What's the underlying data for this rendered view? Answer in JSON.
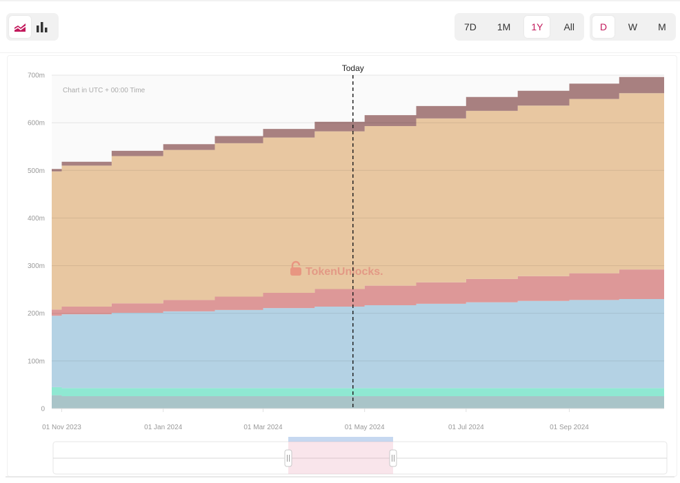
{
  "toolbar": {
    "chart_type_buttons": [
      {
        "icon": "area-chart-icon",
        "active": true
      },
      {
        "icon": "bar-chart-icon",
        "active": false
      }
    ],
    "range_buttons": [
      {
        "label": "7D",
        "active": false
      },
      {
        "label": "1M",
        "active": false
      },
      {
        "label": "1Y",
        "active": true
      },
      {
        "label": "All",
        "active": false
      }
    ],
    "interval_buttons": [
      {
        "label": "D",
        "active": true
      },
      {
        "label": "W",
        "active": false
      },
      {
        "label": "M",
        "active": false
      }
    ],
    "accent_color": "#c2185b"
  },
  "chart": {
    "note": "Chart in UTC + 00:00 Time",
    "today_label": "Today",
    "watermark": "TokenUnlocks."
  },
  "chart_data": {
    "type": "area",
    "stacked": true,
    "step": true,
    "y_ticks": [
      "0",
      "100m",
      "200m",
      "300m",
      "400m",
      "500m",
      "600m",
      "700m"
    ],
    "ylim": [
      0,
      700
    ],
    "x_ticks": [
      "01 Nov 2023",
      "01 Jan 2024",
      "01 Mar 2024",
      "01 May 2024",
      "01 Jul 2024",
      "01 Sep 2024"
    ],
    "x_tick_dates": [
      "2023-11-01",
      "2024-01-01",
      "2024-03-01",
      "2024-05-01",
      "2024-07-01",
      "2024-09-01"
    ],
    "xlim": [
      "2023-10-26",
      "2024-10-28"
    ],
    "today": "2024-04-24",
    "steps": [
      "2023-10-26",
      "2023-11-01",
      "2023-12-01",
      "2024-01-01",
      "2024-02-01",
      "2024-03-01",
      "2024-04-01",
      "2024-05-01",
      "2024-06-01",
      "2024-07-01",
      "2024-08-01",
      "2024-09-01",
      "2024-10-01",
      "2024-10-28"
    ],
    "series": [
      {
        "color": "#a9c4c8",
        "values": [
          28,
          26,
          26,
          26,
          26,
          26,
          26,
          26,
          26,
          26,
          26,
          26,
          26,
          26
        ]
      },
      {
        "color": "#8fe8d2",
        "values": [
          17,
          17,
          17,
          17,
          17,
          17,
          17,
          17,
          17,
          17,
          17,
          17,
          17,
          17
        ]
      },
      {
        "color": "#b4d2e4",
        "values": [
          150,
          155,
          158,
          161,
          164,
          168,
          171,
          174,
          177,
          180,
          183,
          185,
          187,
          187
        ]
      },
      {
        "color": "#dd9898",
        "values": [
          13,
          16,
          20,
          24,
          28,
          32,
          37,
          41,
          45,
          49,
          52,
          56,
          62,
          62
        ]
      },
      {
        "color": "#e8c7a1",
        "values": [
          290,
          296,
          309,
          315,
          322,
          326,
          331,
          335,
          344,
          353,
          358,
          366,
          370,
          370
        ]
      },
      {
        "color": "#a88080",
        "values": [
          5,
          8,
          11,
          12,
          15,
          18,
          20,
          23,
          26,
          29,
          31,
          32,
          34,
          34
        ]
      }
    ]
  }
}
